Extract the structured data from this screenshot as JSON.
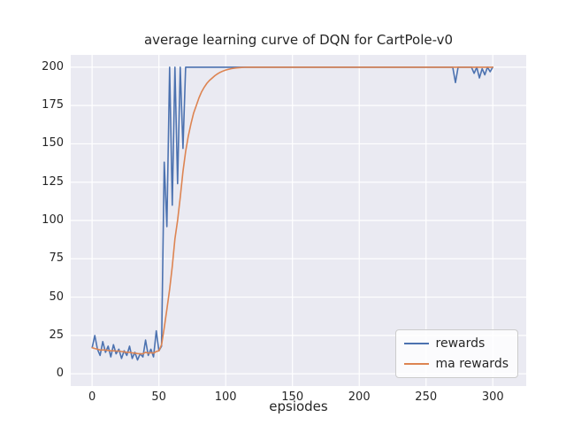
{
  "chart_data": {
    "type": "line",
    "title": "average learning curve of DQN for CartPole-v0",
    "xlabel": "epsiodes",
    "ylabel": "",
    "grid": true,
    "legend_position": "lower right",
    "xlim": [
      -16,
      325
    ],
    "ylim": [
      -8,
      208
    ],
    "xticks": [
      0,
      50,
      100,
      150,
      200,
      250,
      300
    ],
    "yticks": [
      0,
      25,
      50,
      75,
      100,
      125,
      150,
      175,
      200
    ],
    "colors": {
      "axes_background": "#eaeaf2",
      "grid": "#ffffff",
      "text": "#262626",
      "rewards": "#4c72b0",
      "ma_rewards": "#dd8452"
    },
    "x": [
      0,
      2,
      4,
      6,
      8,
      10,
      12,
      14,
      16,
      18,
      20,
      22,
      24,
      26,
      28,
      30,
      32,
      34,
      36,
      38,
      40,
      42,
      44,
      46,
      48,
      50,
      52,
      54,
      56,
      58,
      60,
      62,
      64,
      66,
      68,
      70,
      72,
      74,
      76,
      78,
      80,
      82,
      84,
      86,
      88,
      90,
      92,
      94,
      96,
      98,
      100,
      102,
      104,
      106,
      108,
      110,
      112,
      114,
      116,
      118,
      120,
      122,
      124,
      126,
      128,
      130,
      132,
      134,
      136,
      138,
      140,
      142,
      144,
      146,
      148,
      150,
      152,
      154,
      156,
      158,
      160,
      162,
      164,
      166,
      168,
      170,
      172,
      174,
      176,
      178,
      180,
      182,
      184,
      186,
      188,
      190,
      192,
      194,
      196,
      198,
      200,
      202,
      204,
      206,
      208,
      210,
      212,
      214,
      216,
      218,
      220,
      222,
      224,
      226,
      228,
      230,
      232,
      234,
      236,
      238,
      240,
      242,
      244,
      246,
      248,
      250,
      252,
      254,
      256,
      258,
      260,
      262,
      264,
      266,
      268,
      270,
      272,
      274,
      276,
      278,
      280,
      282,
      284,
      286,
      288,
      290,
      292,
      294,
      296,
      298,
      300
    ],
    "series": [
      {
        "name": "rewards",
        "color": "#4c72b0",
        "values": [
          17,
          25,
          16,
          12,
          21,
          14,
          18,
          11,
          19,
          13,
          16,
          10,
          15,
          12,
          18,
          10,
          14,
          9,
          13,
          11,
          22,
          12,
          16,
          11,
          28,
          15,
          18,
          138,
          96,
          200,
          110,
          200,
          124,
          200,
          147,
          200,
          200,
          200,
          200,
          200,
          200,
          200,
          200,
          200,
          200,
          200,
          200,
          200,
          200,
          200,
          200,
          200,
          200,
          200,
          200,
          200,
          200,
          200,
          200,
          200,
          200,
          200,
          200,
          200,
          200,
          200,
          200,
          200,
          200,
          200,
          200,
          200,
          200,
          200,
          200,
          200,
          200,
          200,
          200,
          200,
          200,
          200,
          200,
          200,
          200,
          200,
          200,
          200,
          200,
          200,
          200,
          200,
          200,
          200,
          200,
          200,
          200,
          200,
          200,
          200,
          200,
          200,
          200,
          200,
          200,
          200,
          200,
          200,
          200,
          200,
          200,
          200,
          200,
          200,
          200,
          200,
          200,
          200,
          200,
          200,
          200,
          200,
          200,
          200,
          200,
          200,
          200,
          200,
          200,
          200,
          200,
          200,
          200,
          200,
          200,
          200,
          190,
          200,
          200,
          200,
          200,
          200,
          200,
          196,
          200,
          193,
          199,
          195,
          200,
          197,
          200
        ]
      },
      {
        "name": "ma rewards",
        "color": "#dd8452",
        "values": [
          17,
          16.5,
          16,
          15.5,
          15.5,
          15.5,
          15.2,
          15,
          15,
          14.8,
          14.8,
          14.5,
          14.3,
          14,
          14,
          13.6,
          13.5,
          13.2,
          13,
          13,
          14,
          13.5,
          13.8,
          13.5,
          14.5,
          15,
          19,
          30,
          42,
          55,
          70,
          88,
          100,
          115,
          132,
          145,
          155,
          163,
          170,
          175,
          180,
          184,
          187,
          189.5,
          191.5,
          193,
          194.5,
          195.7,
          196.7,
          197.5,
          198.1,
          198.6,
          199,
          199.3,
          199.5,
          199.7,
          199.8,
          199.9,
          200,
          200,
          200,
          200,
          200,
          200,
          200,
          200,
          200,
          200,
          200,
          200,
          200,
          200,
          200,
          200,
          200,
          200,
          200,
          200,
          200,
          200,
          200,
          200,
          200,
          200,
          200,
          200,
          200,
          200,
          200,
          200,
          200,
          200,
          200,
          200,
          200,
          200,
          200,
          200,
          200,
          200,
          200,
          200,
          200,
          200,
          200,
          200,
          200,
          200,
          200,
          200,
          200,
          200,
          200,
          200,
          200,
          200,
          200,
          200,
          200,
          200,
          200,
          200,
          200,
          200,
          200,
          200,
          200,
          200,
          200,
          200,
          200,
          200,
          200,
          200,
          200,
          200,
          200,
          200,
          200,
          200,
          200,
          200,
          200,
          200,
          200,
          200,
          200,
          200,
          200,
          200,
          200
        ]
      }
    ]
  }
}
